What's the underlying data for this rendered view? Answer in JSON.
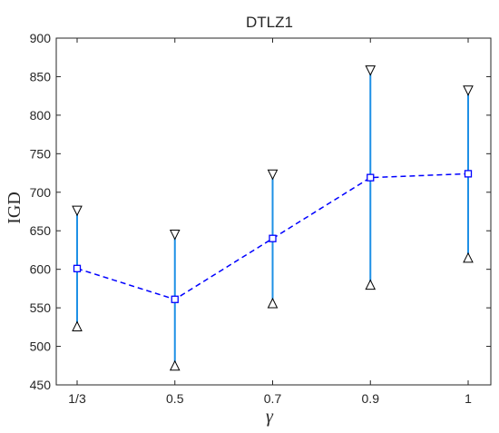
{
  "chart_data": {
    "type": "line",
    "title": "DTLZ1",
    "xlabel": "γ",
    "ylabel": "IGD",
    "categories": [
      "1/3",
      "0.5",
      "0.7",
      "0.9",
      "1"
    ],
    "ylim": [
      450,
      900
    ],
    "yticks": [
      450,
      500,
      550,
      600,
      650,
      700,
      750,
      800,
      850,
      900
    ],
    "grid": false,
    "legend": "none",
    "series": [
      {
        "kind": "mean-line",
        "marker": "square",
        "line_style": "dashed",
        "color": "#0000ff",
        "values": [
          601,
          561,
          640,
          719,
          724
        ]
      },
      {
        "kind": "error-range",
        "color": "#1e90e6",
        "min": [
          526,
          475,
          556,
          580,
          615
        ],
        "max": [
          676,
          645,
          723,
          858,
          832
        ]
      }
    ],
    "colors": {
      "mean_line": "#0000ff",
      "error_bar": "#1e90e6",
      "range_marker": "#000000"
    }
  }
}
